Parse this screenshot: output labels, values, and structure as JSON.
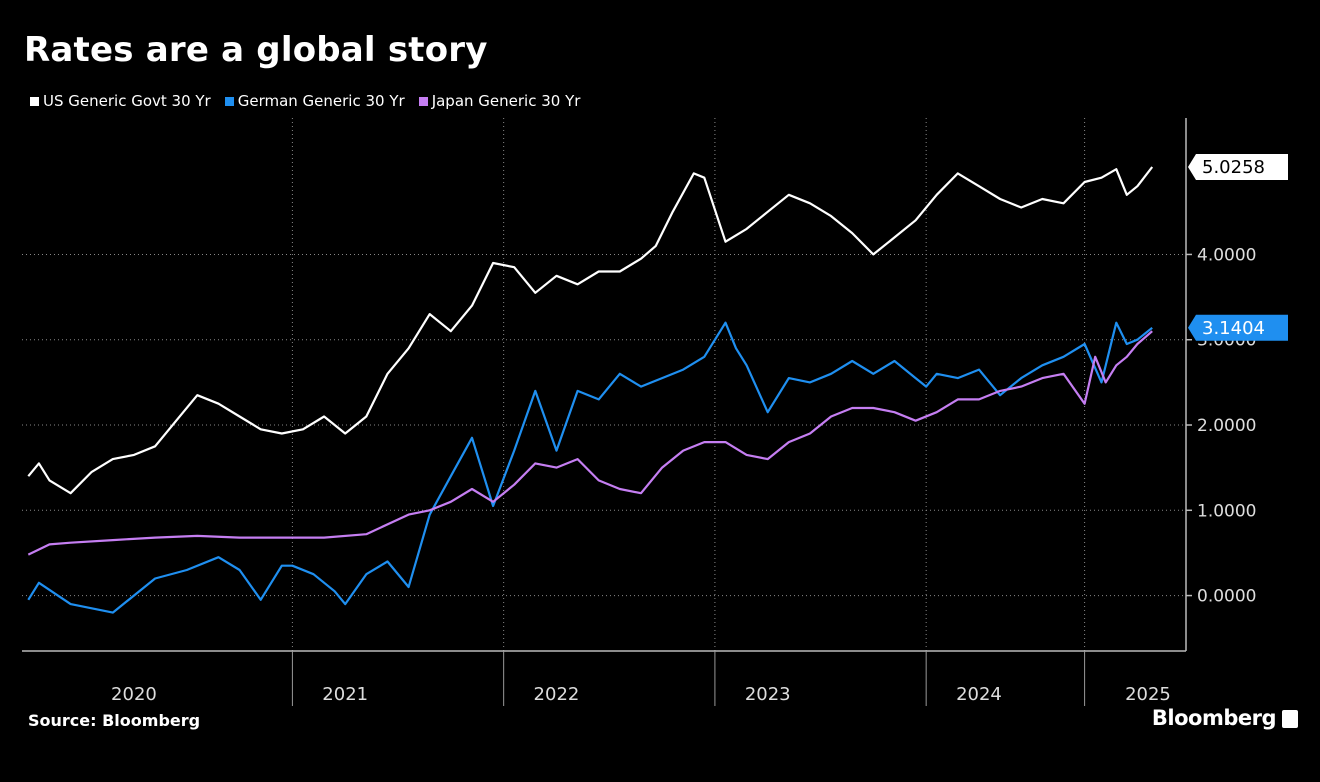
{
  "header": {
    "title": "Rates are a global story"
  },
  "footer": {
    "source": "Source: Bloomberg",
    "brand": "Bloomberg"
  },
  "colors": {
    "us": "#ffffff",
    "germany": "#1f8ff0",
    "japan": "#c57ef2",
    "background": "#000000",
    "grid": "#777777"
  },
  "chart_data": {
    "type": "line",
    "title": "Rates are a global story",
    "xlabel": "",
    "ylabel": "",
    "ylim": [
      -0.65,
      5.6
    ],
    "xlim": [
      2019.97,
      2025.48
    ],
    "grid": true,
    "legend_position": "top-left",
    "y_ticks": [
      0,
      1,
      2,
      3,
      4
    ],
    "y_tick_labels": [
      "0.0000",
      "1.0000",
      "2.0000",
      "3.0000",
      "4.0000"
    ],
    "x_ticks": [
      2020.5,
      2021.5,
      2022.5,
      2023.5,
      2024.5,
      2025.3
    ],
    "x_tick_labels": [
      "2020",
      "2021",
      "2022",
      "2023",
      "2024",
      "2025"
    ],
    "year_boundaries": [
      2021.25,
      2022.25,
      2023.25,
      2024.25,
      2025.0
    ],
    "series": [
      {
        "name": "US Generic Govt 30 Yr",
        "color": "#ffffff",
        "last_value": "5.0258",
        "x": [
          2020.0,
          2020.05,
          2020.1,
          2020.2,
          2020.3,
          2020.4,
          2020.5,
          2020.6,
          2020.7,
          2020.8,
          2020.9,
          2021.0,
          2021.1,
          2021.2,
          2021.3,
          2021.4,
          2021.5,
          2021.6,
          2021.7,
          2021.8,
          2021.9,
          2022.0,
          2022.1,
          2022.2,
          2022.3,
          2022.4,
          2022.5,
          2022.6,
          2022.7,
          2022.8,
          2022.9,
          2022.97,
          2023.05,
          2023.15,
          2023.2,
          2023.3,
          2023.4,
          2023.5,
          2023.6,
          2023.7,
          2023.8,
          2023.9,
          2024.0,
          2024.1,
          2024.2,
          2024.3,
          2024.4,
          2024.5,
          2024.6,
          2024.7,
          2024.8,
          2024.9,
          2025.0,
          2025.08,
          2025.15,
          2025.2,
          2025.25,
          2025.32
        ],
        "values": [
          1.4,
          1.55,
          1.35,
          1.2,
          1.45,
          1.6,
          1.65,
          1.75,
          2.05,
          2.35,
          2.25,
          2.1,
          1.95,
          1.9,
          1.95,
          2.1,
          1.9,
          2.1,
          2.6,
          2.9,
          3.3,
          3.1,
          3.4,
          3.9,
          3.85,
          3.55,
          3.75,
          3.65,
          3.8,
          3.8,
          3.95,
          4.1,
          4.5,
          4.95,
          4.9,
          4.15,
          4.3,
          4.5,
          4.7,
          4.6,
          4.45,
          4.25,
          4.0,
          4.2,
          4.4,
          4.7,
          4.95,
          4.8,
          4.65,
          4.55,
          4.65,
          4.6,
          4.85,
          4.9,
          5.0,
          4.7,
          4.8,
          5.0258
        ]
      },
      {
        "name": "German Generic 30 Yr",
        "color": "#1f8ff0",
        "last_value": "3.1404",
        "x": [
          2020.0,
          2020.05,
          2020.2,
          2020.4,
          2020.6,
          2020.75,
          2020.9,
          2021.0,
          2021.1,
          2021.2,
          2021.25,
          2021.35,
          2021.45,
          2021.5,
          2021.6,
          2021.7,
          2021.8,
          2021.9,
          2022.0,
          2022.1,
          2022.2,
          2022.3,
          2022.4,
          2022.5,
          2022.6,
          2022.7,
          2022.8,
          2022.9,
          2023.0,
          2023.1,
          2023.2,
          2023.3,
          2023.35,
          2023.4,
          2023.5,
          2023.6,
          2023.7,
          2023.8,
          2023.9,
          2024.0,
          2024.1,
          2024.2,
          2024.25,
          2024.3,
          2024.4,
          2024.5,
          2024.6,
          2024.7,
          2024.8,
          2024.9,
          2025.0,
          2025.08,
          2025.15,
          2025.2,
          2025.25,
          2025.32
        ],
        "values": [
          -0.05,
          0.15,
          -0.1,
          -0.2,
          0.2,
          0.3,
          0.45,
          0.3,
          -0.05,
          0.35,
          0.35,
          0.25,
          0.05,
          -0.1,
          0.25,
          0.4,
          0.1,
          0.95,
          1.4,
          1.85,
          1.05,
          1.7,
          2.4,
          1.7,
          2.4,
          2.3,
          2.6,
          2.45,
          2.55,
          2.65,
          2.8,
          3.2,
          2.9,
          2.7,
          2.15,
          2.55,
          2.5,
          2.6,
          2.75,
          2.6,
          2.75,
          2.55,
          2.45,
          2.6,
          2.55,
          2.65,
          2.35,
          2.55,
          2.7,
          2.8,
          2.95,
          2.5,
          3.2,
          2.95,
          3.0,
          3.1404
        ]
      },
      {
        "name": "Japan Generic 30 Yr",
        "color": "#c57ef2",
        "last_value": "",
        "x": [
          2020.0,
          2020.1,
          2020.2,
          2020.4,
          2020.6,
          2020.8,
          2021.0,
          2021.2,
          2021.4,
          2021.6,
          2021.8,
          2021.9,
          2022.0,
          2022.1,
          2022.2,
          2022.3,
          2022.4,
          2022.5,
          2022.6,
          2022.7,
          2022.8,
          2022.9,
          2023.0,
          2023.1,
          2023.2,
          2023.3,
          2023.4,
          2023.5,
          2023.6,
          2023.7,
          2023.8,
          2023.9,
          2024.0,
          2024.1,
          2024.2,
          2024.3,
          2024.4,
          2024.5,
          2024.6,
          2024.7,
          2024.8,
          2024.9,
          2025.0,
          2025.05,
          2025.1,
          2025.15,
          2025.2,
          2025.25,
          2025.32
        ],
        "values": [
          0.48,
          0.6,
          0.62,
          0.65,
          0.68,
          0.7,
          0.68,
          0.68,
          0.68,
          0.72,
          0.95,
          1.0,
          1.1,
          1.25,
          1.1,
          1.3,
          1.55,
          1.5,
          1.6,
          1.35,
          1.25,
          1.2,
          1.5,
          1.7,
          1.8,
          1.8,
          1.65,
          1.6,
          1.8,
          1.9,
          2.1,
          2.2,
          2.2,
          2.15,
          2.05,
          2.15,
          2.3,
          2.3,
          2.4,
          2.45,
          2.55,
          2.6,
          2.25,
          2.8,
          2.5,
          2.7,
          2.8,
          2.95,
          3.1
        ]
      }
    ]
  }
}
